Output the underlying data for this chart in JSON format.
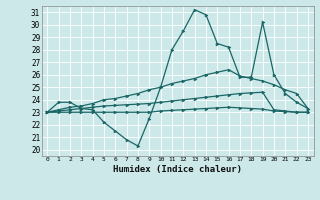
{
  "xlabel": "Humidex (Indice chaleur)",
  "xlim": [
    -0.5,
    23.5
  ],
  "ylim": [
    19.5,
    31.5
  ],
  "xticks": [
    0,
    1,
    2,
    3,
    4,
    5,
    6,
    7,
    8,
    9,
    10,
    11,
    12,
    13,
    14,
    15,
    16,
    17,
    18,
    19,
    20,
    21,
    22,
    23
  ],
  "yticks": [
    20,
    21,
    22,
    23,
    24,
    25,
    26,
    27,
    28,
    29,
    30,
    31
  ],
  "bg_color": "#cce8e8",
  "grid_color": "#b0d4d4",
  "line_color": "#1a6666",
  "line_width": 0.9,
  "marker": "D",
  "marker_size": 2.0,
  "series": {
    "line1": [
      23.0,
      23.8,
      23.8,
      23.3,
      23.2,
      22.2,
      21.5,
      20.8,
      20.3,
      22.5,
      25.0,
      28.0,
      29.5,
      31.2,
      30.8,
      28.5,
      28.2,
      25.8,
      25.8,
      30.2,
      26.0,
      24.5,
      23.8,
      23.3
    ],
    "line2": [
      23.0,
      23.2,
      23.4,
      23.5,
      23.7,
      24.0,
      24.1,
      24.3,
      24.5,
      24.8,
      25.0,
      25.3,
      25.5,
      25.7,
      26.0,
      26.2,
      26.4,
      25.9,
      25.7,
      25.5,
      25.2,
      24.8,
      24.5,
      23.3
    ],
    "line3": [
      23.0,
      23.1,
      23.2,
      23.3,
      23.4,
      23.5,
      23.55,
      23.6,
      23.65,
      23.7,
      23.8,
      23.9,
      24.0,
      24.1,
      24.2,
      24.3,
      24.4,
      24.5,
      24.55,
      24.6,
      23.2,
      23.1,
      23.0,
      23.0
    ],
    "line4": [
      23.0,
      23.0,
      23.0,
      23.0,
      23.0,
      23.0,
      23.0,
      23.0,
      23.0,
      23.0,
      23.1,
      23.15,
      23.2,
      23.25,
      23.3,
      23.35,
      23.4,
      23.35,
      23.3,
      23.25,
      23.1,
      23.05,
      23.0,
      23.0
    ]
  }
}
